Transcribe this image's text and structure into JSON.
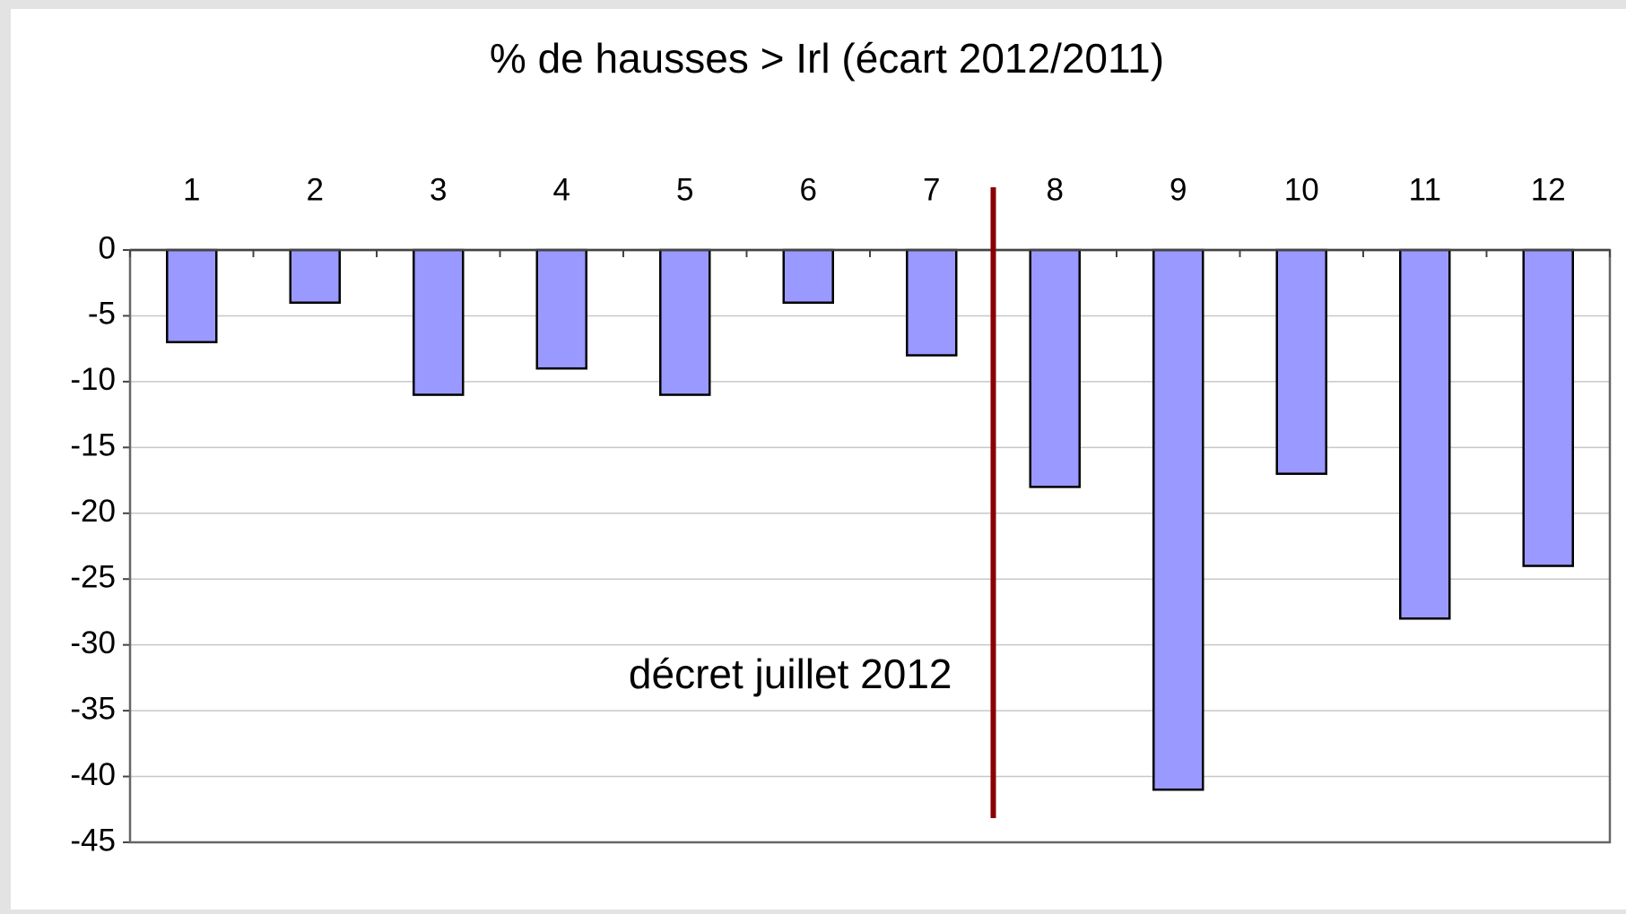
{
  "chart_data": {
    "type": "bar",
    "title": "% de hausses > Irl (écart 2012/2011)",
    "categories": [
      "1",
      "2",
      "3",
      "4",
      "5",
      "6",
      "7",
      "8",
      "9",
      "10",
      "11",
      "12"
    ],
    "values": [
      -7,
      -4,
      -11,
      -9,
      -11,
      -4,
      -8,
      -18,
      -41,
      -17,
      -28,
      -24
    ],
    "color": "#9999ff",
    "ylim": [
      -45,
      0
    ],
    "yticks": [
      0,
      -5,
      -10,
      -15,
      -20,
      -25,
      -30,
      -35,
      -40,
      -45
    ],
    "grid": true,
    "annotation": "décret juillet 2012",
    "annotation_line_color": "#8b0000"
  }
}
